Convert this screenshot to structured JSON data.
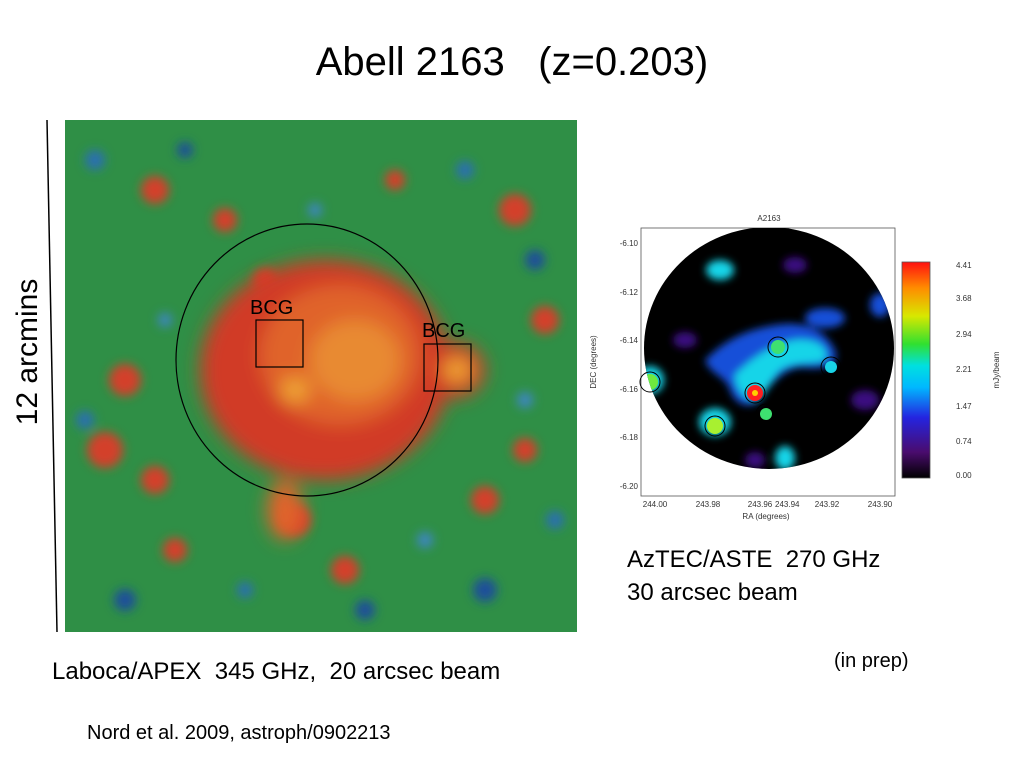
{
  "title": "Abell 2163   (z=0.203)",
  "scale_label": "12 arcmins",
  "laboca": {
    "bcg_label_1": "BCG",
    "bcg_label_2": "BCG",
    "caption": "Laboca/APEX  345 GHz,  20 arcsec beam",
    "reference": "Nord et al. 2009, astroph/0902213"
  },
  "aztec": {
    "plot_title": "A2163",
    "xlabel": "RA (degrees)",
    "ylabel": "DEC (degrees)",
    "colorbar_label": "mJy/beam",
    "x_ticks": [
      "244.00",
      "243.98",
      "243.96",
      "243.94",
      "243.92",
      "243.90"
    ],
    "y_ticks": [
      "-6.10",
      "-6.12",
      "-6.14",
      "-6.16",
      "-6.18",
      "-6.20"
    ],
    "colorbar_ticks": [
      "4.41",
      "3.68",
      "2.94",
      "2.21",
      "1.47",
      "0.74",
      "0.00"
    ],
    "caption_line1": "AzTEC/ASTE  270 GHz",
    "caption_line2": "30 arcsec beam",
    "note": "(in prep)"
  }
}
